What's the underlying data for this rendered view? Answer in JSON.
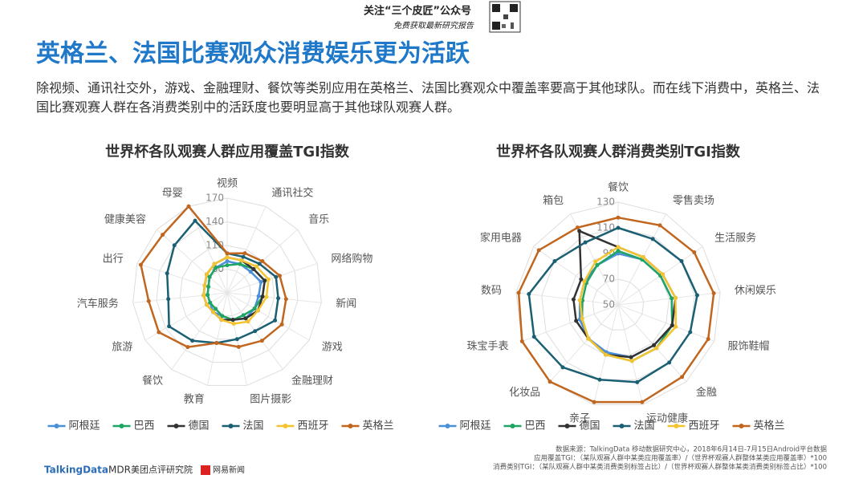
{
  "header": {
    "brand": "关注“三个皮匠”公众号",
    "brand_sub": "免费获取最新研究报告",
    "title": "英格兰、法国比赛观众消费娱乐更为活跃",
    "description": "除视频、通讯社交外，游戏、金融理财、餐饮等类别应用在英格兰、法国比赛观众中覆盖率要高于其他球队。而在线下消费中，英格兰、法国比赛观赛人群在各消费类别中的活跃度也要明显高于其他球队观赛人群。"
  },
  "chart_data": [
    {
      "type": "radar",
      "title": "世界杯各队观赛人群应用覆盖TGI指数",
      "categories": [
        "视频",
        "通讯社交",
        "音乐",
        "网络购物",
        "新闻",
        "游戏",
        "金融理财",
        "图片摄影",
        "教育",
        "餐饮",
        "旅游",
        "汽车服务",
        "出行",
        "健康美容",
        "母婴"
      ],
      "rlim": [
        50,
        170
      ],
      "rticks": [
        80,
        110,
        140,
        170
      ],
      "grid": true,
      "legend": "bottom",
      "series": [
        {
          "name": "阿根廷",
          "color": "#4a8fd8",
          "values": [
            90,
            90,
            90,
            95,
            90,
            90,
            90,
            85,
            80,
            80,
            75,
            75,
            75,
            80,
            85
          ]
        },
        {
          "name": "巴西",
          "color": "#1fa463",
          "values": [
            85,
            90,
            95,
            100,
            95,
            90,
            85,
            85,
            80,
            75,
            75,
            75,
            75,
            80,
            85
          ]
        },
        {
          "name": "德国",
          "color": "#333333",
          "values": [
            95,
            95,
            95,
            100,
            95,
            95,
            90,
            85,
            85,
            80,
            80,
            80,
            80,
            85,
            90
          ]
        },
        {
          "name": "法国",
          "color": "#1b5f73",
          "values": [
            100,
            100,
            105,
            115,
            115,
            120,
            110,
            110,
            115,
            125,
            135,
            125,
            130,
            140,
            150
          ]
        },
        {
          "name": "西班牙",
          "color": "#f4c430",
          "values": [
            95,
            95,
            100,
            105,
            100,
            95,
            95,
            90,
            85,
            80,
            80,
            80,
            80,
            85,
            90
          ]
        },
        {
          "name": "英格兰",
          "color": "#c0661f",
          "values": [
            100,
            105,
            110,
            120,
            125,
            130,
            125,
            120,
            115,
            135,
            150,
            150,
            165,
            160,
            170
          ]
        }
      ]
    },
    {
      "type": "radar",
      "title": "世界杯各队观赛人群消费类别TGI指数",
      "categories": [
        "餐饮",
        "零售卖场",
        "生活服务",
        "休闲娱乐",
        "服饰鞋帽",
        "金融",
        "运动健康",
        "亲子",
        "化妆品",
        "珠宝手表",
        "数码",
        "家用电器",
        "箱包"
      ],
      "rlim": [
        50,
        130
      ],
      "rticks": [
        50,
        70,
        90,
        110,
        130
      ],
      "grid": true,
      "legend": "bottom",
      "series": [
        {
          "name": "阿根廷",
          "color": "#4a8fd8",
          "values": [
            90,
            90,
            90,
            92,
            95,
            92,
            92,
            88,
            85,
            82,
            80,
            82,
            85
          ]
        },
        {
          "name": "巴西",
          "color": "#1fa463",
          "values": [
            92,
            90,
            90,
            92,
            95,
            95,
            95,
            90,
            85,
            80,
            78,
            80,
            85
          ]
        },
        {
          "name": "德国",
          "color": "#333333",
          "values": [
            95,
            92,
            92,
            95,
            95,
            92,
            92,
            90,
            85,
            85,
            85,
            85,
            115
          ]
        },
        {
          "name": "法国",
          "color": "#1b5f73",
          "values": [
            110,
            108,
            110,
            112,
            110,
            110,
            112,
            110,
            115,
            120,
            120,
            110,
            105
          ]
        },
        {
          "name": "西班牙",
          "color": "#f4c430",
          "values": [
            95,
            92,
            92,
            95,
            98,
            95,
            95,
            90,
            85,
            80,
            80,
            82,
            88
          ]
        },
        {
          "name": "英格兰",
          "color": "#c0661f",
          "values": [
            118,
            120,
            122,
            125,
            125,
            125,
            128,
            128,
            130,
            130,
            128,
            125,
            118
          ]
        }
      ]
    }
  ],
  "source": {
    "lines": [
      "数据来源：TalkingData 移动数据研究中心，2018年6月14日-7月15日Android平台数据",
      "应用覆盖TGI：（某队观赛人群中某类应用覆盖率）/（世界杯观赛人群整体某类应用覆盖率）*100",
      "消费类别TGI：（某队观赛人群中某类消费类别标签占比）/（世界杯观赛人群整体某类消费类别标签占比）*100"
    ]
  },
  "logos": [
    "TalkingData",
    "MDR",
    "美团点评研究院",
    "网易新闻"
  ]
}
